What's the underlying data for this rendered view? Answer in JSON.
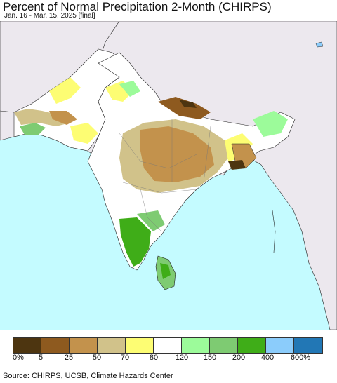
{
  "header": {
    "title": "Percent of Normal Precipitation 2-Month (CHIRPS)",
    "subtitle": "Jan. 16 - Mar. 15, 2025 [final]"
  },
  "legend": {
    "colors": [
      "#4d3510",
      "#8e5a1f",
      "#c3924c",
      "#d1c28a",
      "#fdfd73",
      "#ffffff",
      "#9cfb9a",
      "#7ecb72",
      "#3fad18",
      "#8bccfb",
      "#2277b5"
    ],
    "labels": [
      "0%",
      "5",
      "25",
      "50",
      "70",
      "80",
      "120",
      "150",
      "200",
      "400",
      "600%"
    ]
  },
  "footer": {
    "source": "Source: CHIRPS, UCSB, Climate Hazards Center"
  }
}
